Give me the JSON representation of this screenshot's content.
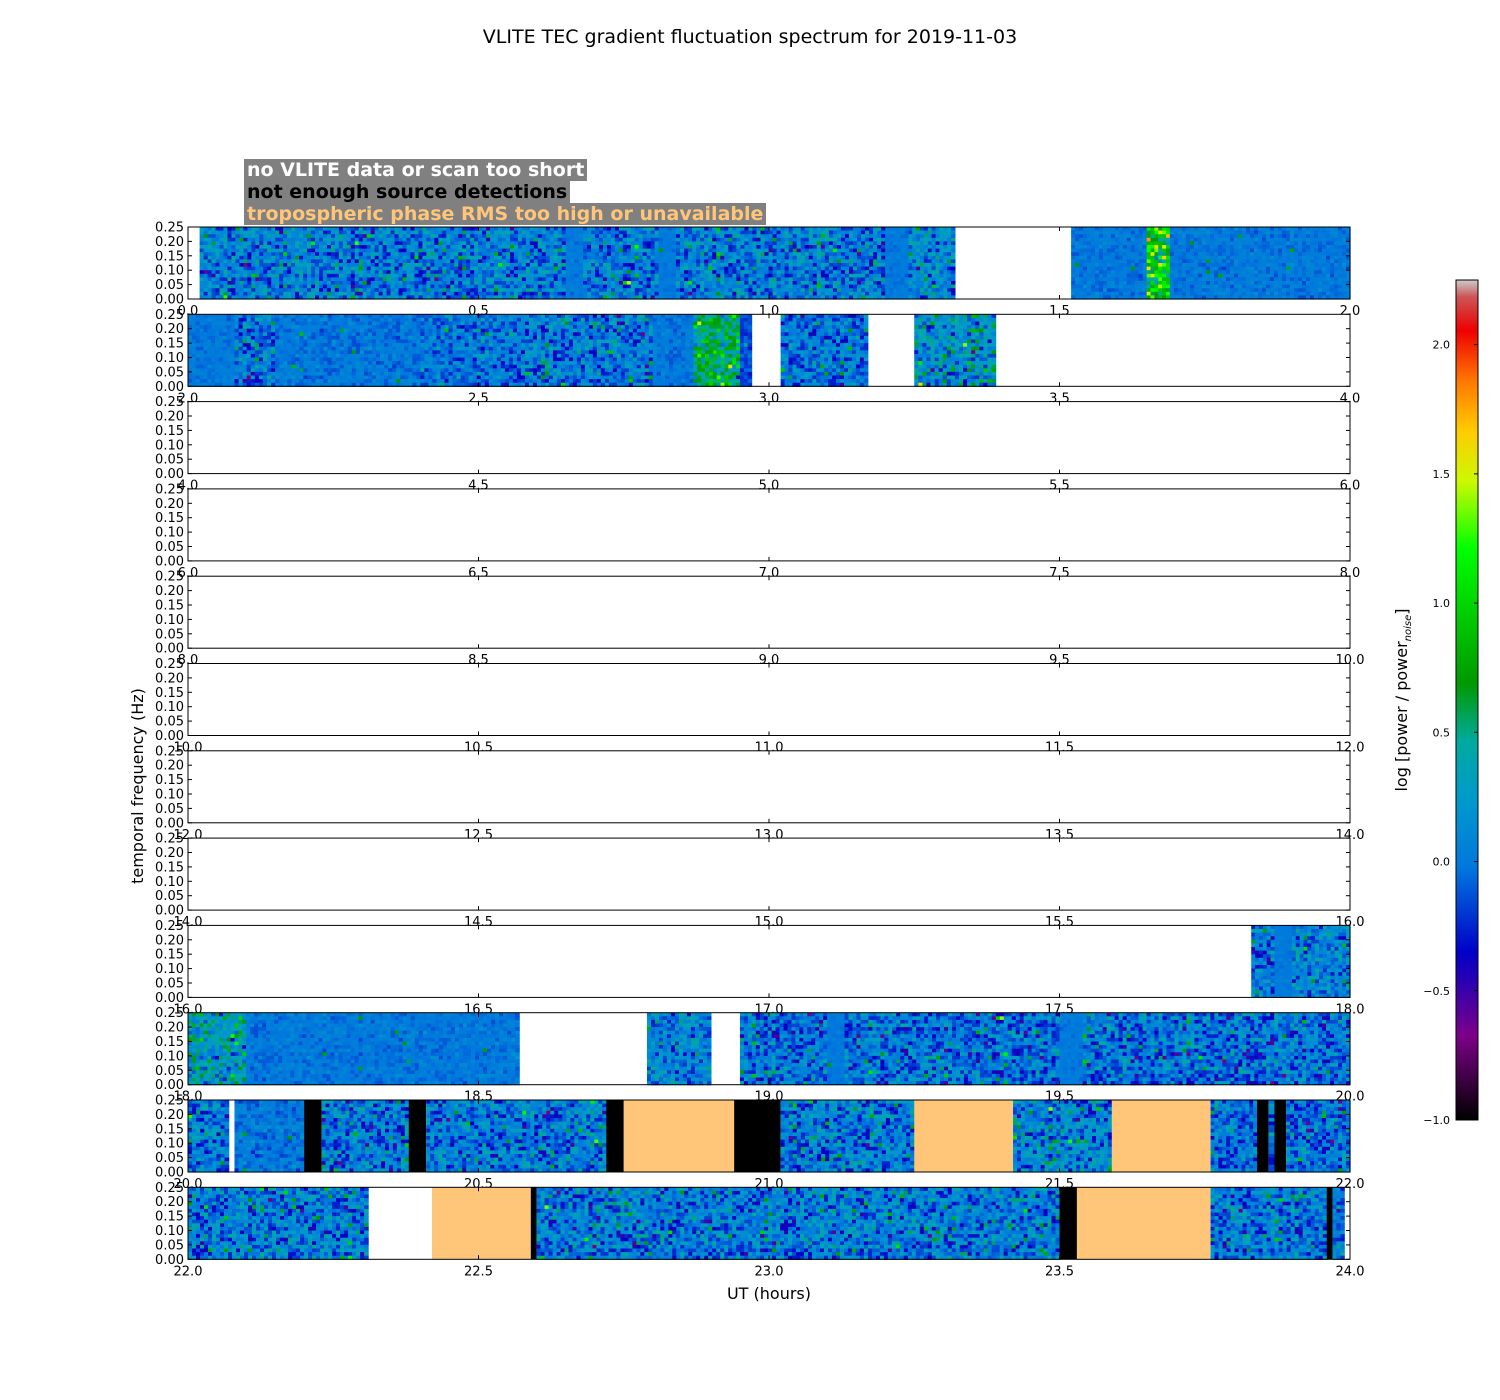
{
  "chart_data": {
    "type": "heatmap",
    "title": "VLITE TEC gradient fluctuation spectrum for 2019-11-03",
    "xlabel": "UT (hours)",
    "ylabel": "temporal frequency (Hz)",
    "colorbar_label": "log [power / power",
    "colorbar_label_sub": "noise",
    "colorbar_label_end": "]",
    "colorbar_range": [
      -1.0,
      2.25
    ],
    "colorbar_ticks": [
      "−1.0",
      "−0.5",
      "0.0",
      "0.5",
      "1.0",
      "1.5",
      "2.0"
    ],
    "colormap": "nipy_spectral",
    "y_range": [
      0.0,
      0.25
    ],
    "y_ticks": [
      "0.00",
      "0.05",
      "0.10",
      "0.15",
      "0.20",
      "0.25"
    ],
    "legend": [
      {
        "label": "no VLITE data or scan too short",
        "color": "#ffffff"
      },
      {
        "label": "not enough source detections",
        "color": "#000000"
      },
      {
        "label": "tropospheric phase RMS too high or unavailable",
        "color": "#ffc67a"
      }
    ],
    "panels": [
      {
        "xlim": [
          0,
          2
        ],
        "x_ticks": [
          "0.0",
          "0.5",
          "1.0",
          "1.5",
          "2.0"
        ],
        "segments": [
          {
            "start": 0.0,
            "end": 0.02,
            "kind": "nodata"
          },
          {
            "start": 0.02,
            "end": 0.65,
            "kind": "data",
            "level": 0.05,
            "noise": 0.35
          },
          {
            "start": 0.65,
            "end": 0.68,
            "kind": "data",
            "level": 0.0,
            "noise": 0.05
          },
          {
            "start": 0.68,
            "end": 0.81,
            "kind": "data",
            "level": 0.05,
            "noise": 0.35
          },
          {
            "start": 0.81,
            "end": 0.84,
            "kind": "data",
            "level": 0.0,
            "noise": 0.05
          },
          {
            "start": 0.84,
            "end": 1.2,
            "kind": "data",
            "level": 0.05,
            "noise": 0.35
          },
          {
            "start": 1.2,
            "end": 1.24,
            "kind": "data",
            "level": 0.0,
            "noise": 0.05
          },
          {
            "start": 1.24,
            "end": 1.32,
            "kind": "data",
            "level": 0.1,
            "noise": 0.35
          },
          {
            "start": 1.32,
            "end": 1.52,
            "kind": "nodata"
          },
          {
            "start": 1.52,
            "end": 1.65,
            "kind": "data",
            "level": 0.0,
            "noise": 0.1
          },
          {
            "start": 1.65,
            "end": 1.69,
            "kind": "data",
            "level": 0.9,
            "noise": 0.5
          },
          {
            "start": 1.69,
            "end": 2.0,
            "kind": "data",
            "level": 0.0,
            "noise": 0.1
          }
        ]
      },
      {
        "xlim": [
          2,
          4
        ],
        "x_ticks": [
          "2.0",
          "2.5",
          "3.0",
          "3.5",
          "4.0"
        ],
        "segments": [
          {
            "start": 2.0,
            "end": 2.08,
            "kind": "data",
            "level": 0.0,
            "noise": 0.08
          },
          {
            "start": 2.08,
            "end": 2.15,
            "kind": "data",
            "level": 0.05,
            "noise": 0.35
          },
          {
            "start": 2.15,
            "end": 2.4,
            "kind": "data",
            "level": 0.0,
            "noise": 0.12
          },
          {
            "start": 2.4,
            "end": 2.58,
            "kind": "data",
            "level": 0.0,
            "noise": 0.25
          },
          {
            "start": 2.58,
            "end": 2.8,
            "kind": "data",
            "level": 0.05,
            "noise": 0.35
          },
          {
            "start": 2.8,
            "end": 2.87,
            "kind": "data",
            "level": 0.0,
            "noise": 0.1
          },
          {
            "start": 2.87,
            "end": 2.95,
            "kind": "data",
            "level": 0.55,
            "noise": 0.4
          },
          {
            "start": 2.95,
            "end": 2.97,
            "kind": "data",
            "level": -0.15,
            "noise": 0.1
          },
          {
            "start": 2.97,
            "end": 3.0,
            "kind": "nodata"
          },
          {
            "start": 3.0,
            "end": 3.02,
            "kind": "nodata"
          },
          {
            "start": 3.02,
            "end": 3.17,
            "kind": "data",
            "level": 0.0,
            "noise": 0.3
          },
          {
            "start": 3.17,
            "end": 3.25,
            "kind": "nodata"
          },
          {
            "start": 3.25,
            "end": 3.39,
            "kind": "data",
            "level": 0.2,
            "noise": 0.4
          },
          {
            "start": 3.39,
            "end": 4.0,
            "kind": "nodata"
          }
        ]
      },
      {
        "xlim": [
          4,
          6
        ],
        "x_ticks": [
          "4.0",
          "4.5",
          "5.0",
          "5.5",
          "6.0"
        ],
        "segments": []
      },
      {
        "xlim": [
          6,
          8
        ],
        "x_ticks": [
          "6.0",
          "6.5",
          "7.0",
          "7.5",
          "8.0"
        ],
        "segments": []
      },
      {
        "xlim": [
          8,
          10
        ],
        "x_ticks": [
          "8.0",
          "8.5",
          "9.0",
          "9.5",
          "10.0"
        ],
        "segments": []
      },
      {
        "xlim": [
          10,
          12
        ],
        "x_ticks": [
          "10.0",
          "10.5",
          "11.0",
          "11.5",
          "12.0"
        ],
        "segments": []
      },
      {
        "xlim": [
          12,
          14
        ],
        "x_ticks": [
          "12.0",
          "12.5",
          "13.0",
          "13.5",
          "14.0"
        ],
        "segments": []
      },
      {
        "xlim": [
          14,
          16
        ],
        "x_ticks": [
          "14.0",
          "14.5",
          "15.0",
          "15.5",
          "16.0"
        ],
        "segments": []
      },
      {
        "xlim": [
          16,
          18
        ],
        "x_ticks": [
          "16.0",
          "16.5",
          "17.0",
          "17.5",
          "18.0"
        ],
        "segments": [
          {
            "start": 17.83,
            "end": 17.87,
            "kind": "data",
            "level": 0.0,
            "noise": 0.3
          },
          {
            "start": 17.87,
            "end": 17.9,
            "kind": "data",
            "level": 0.0,
            "noise": 0.04
          },
          {
            "start": 17.9,
            "end": 18.0,
            "kind": "data",
            "level": 0.1,
            "noise": 0.3
          }
        ]
      },
      {
        "xlim": [
          18,
          20
        ],
        "x_ticks": [
          "18.0",
          "18.5",
          "19.0",
          "19.5",
          "20.0"
        ],
        "segments": [
          {
            "start": 18.0,
            "end": 18.1,
            "kind": "data",
            "level": 0.3,
            "noise": 0.4
          },
          {
            "start": 18.1,
            "end": 18.57,
            "kind": "data",
            "level": 0.0,
            "noise": 0.1
          },
          {
            "start": 18.57,
            "end": 18.79,
            "kind": "nodata"
          },
          {
            "start": 18.79,
            "end": 18.9,
            "kind": "data",
            "level": 0.1,
            "noise": 0.3
          },
          {
            "start": 18.9,
            "end": 18.95,
            "kind": "nodata"
          },
          {
            "start": 18.95,
            "end": 19.1,
            "kind": "data",
            "level": 0.0,
            "noise": 0.35
          },
          {
            "start": 19.1,
            "end": 19.13,
            "kind": "data",
            "level": 0.0,
            "noise": 0.04
          },
          {
            "start": 19.13,
            "end": 19.5,
            "kind": "data",
            "level": 0.0,
            "noise": 0.35
          },
          {
            "start": 19.5,
            "end": 19.54,
            "kind": "data",
            "level": 0.0,
            "noise": 0.05
          },
          {
            "start": 19.54,
            "end": 20.0,
            "kind": "data",
            "level": 0.0,
            "noise": 0.35
          }
        ]
      },
      {
        "xlim": [
          20,
          22
        ],
        "x_ticks": [
          "20.0",
          "20.5",
          "21.0",
          "21.5",
          "22.0"
        ],
        "segments": [
          {
            "start": 20.0,
            "end": 20.07,
            "kind": "data",
            "level": 0.05,
            "noise": 0.35
          },
          {
            "start": 20.07,
            "end": 20.08,
            "kind": "nodata"
          },
          {
            "start": 20.08,
            "end": 20.2,
            "kind": "data",
            "level": 0.0,
            "noise": 0.15
          },
          {
            "start": 20.2,
            "end": 20.23,
            "kind": "nodetect"
          },
          {
            "start": 20.23,
            "end": 20.38,
            "kind": "data",
            "level": 0.0,
            "noise": 0.35
          },
          {
            "start": 20.38,
            "end": 20.41,
            "kind": "nodetect"
          },
          {
            "start": 20.41,
            "end": 20.72,
            "kind": "data",
            "level": 0.05,
            "noise": 0.35
          },
          {
            "start": 20.72,
            "end": 20.75,
            "kind": "nodetect"
          },
          {
            "start": 20.75,
            "end": 20.94,
            "kind": "trop"
          },
          {
            "start": 20.94,
            "end": 21.02,
            "kind": "nodetect"
          },
          {
            "start": 21.02,
            "end": 21.25,
            "kind": "data",
            "level": 0.05,
            "noise": 0.35
          },
          {
            "start": 21.25,
            "end": 21.42,
            "kind": "trop"
          },
          {
            "start": 21.42,
            "end": 21.59,
            "kind": "data",
            "level": 0.1,
            "noise": 0.35
          },
          {
            "start": 21.59,
            "end": 21.76,
            "kind": "trop"
          },
          {
            "start": 21.76,
            "end": 21.84,
            "kind": "data",
            "level": 0.0,
            "noise": 0.3
          },
          {
            "start": 21.84,
            "end": 21.86,
            "kind": "nodetect"
          },
          {
            "start": 21.86,
            "end": 21.87,
            "kind": "data",
            "level": 0.0,
            "noise": 0.3
          },
          {
            "start": 21.87,
            "end": 21.89,
            "kind": "nodetect"
          },
          {
            "start": 21.89,
            "end": 22.0,
            "kind": "data",
            "level": 0.0,
            "noise": 0.35
          }
        ]
      },
      {
        "xlim": [
          22,
          24
        ],
        "x_ticks": [
          "22.0",
          "22.5",
          "23.0",
          "23.5",
          "24.0"
        ],
        "segments": [
          {
            "start": 22.0,
            "end": 22.31,
            "kind": "data",
            "level": 0.05,
            "noise": 0.35
          },
          {
            "start": 22.31,
            "end": 22.42,
            "kind": "nodata"
          },
          {
            "start": 22.42,
            "end": 22.59,
            "kind": "trop"
          },
          {
            "start": 22.59,
            "end": 22.6,
            "kind": "nodetect"
          },
          {
            "start": 22.6,
            "end": 23.5,
            "kind": "data",
            "level": 0.05,
            "noise": 0.35
          },
          {
            "start": 23.5,
            "end": 23.53,
            "kind": "nodetect"
          },
          {
            "start": 23.53,
            "end": 23.76,
            "kind": "trop"
          },
          {
            "start": 23.76,
            "end": 23.96,
            "kind": "data",
            "level": 0.05,
            "noise": 0.35
          },
          {
            "start": 23.96,
            "end": 23.97,
            "kind": "nodetect"
          },
          {
            "start": 23.97,
            "end": 23.99,
            "kind": "data",
            "level": 0.0,
            "noise": 0.3
          },
          {
            "start": 23.99,
            "end": 24.0,
            "kind": "nodata"
          }
        ]
      }
    ]
  }
}
